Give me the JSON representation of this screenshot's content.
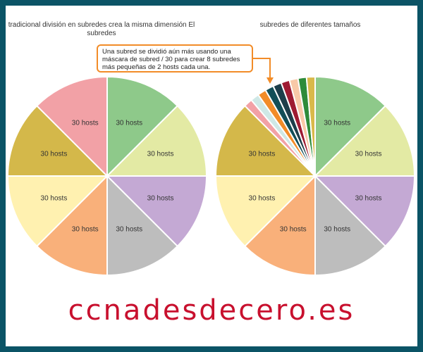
{
  "left_title": "tradicional división en subredes crea la misma dimensión El subredes",
  "right_title": "subredes de diferentes tamaños",
  "callout": "Una subred se dividió aún más usando una máscara de subred / 30 para crear 8 subredes más pequeñas de 2 hosts cada una.",
  "logo": "ccnadesdecero.es",
  "colors": {
    "background": "#0b5466",
    "callout_border": "#f28c28",
    "logo": "#c8102e"
  },
  "left_pie": {
    "slices": [
      {
        "label": "30 hosts",
        "color": "#8ec98a"
      },
      {
        "label": "30 hosts",
        "color": "#e3eaa4"
      },
      {
        "label": "30 hosts",
        "color": "#c4a9d4"
      },
      {
        "label": "30 hosts",
        "color": "#bdbdbd"
      },
      {
        "label": "30 hosts",
        "color": "#f9b07a"
      },
      {
        "label": "30 hosts",
        "color": "#fff1b0"
      },
      {
        "label": "30 hosts",
        "color": "#d4b84a"
      },
      {
        "label": "30 hosts",
        "color": "#f2a1a6"
      }
    ]
  },
  "right_pie": {
    "slices": [
      {
        "label": "30 hosts",
        "color": "#8ec98a"
      },
      {
        "label": "30 hosts",
        "color": "#e3eaa4"
      },
      {
        "label": "30 hosts",
        "color": "#c4a9d4"
      },
      {
        "label": "30 hosts",
        "color": "#bdbdbd"
      },
      {
        "label": "30 hosts",
        "color": "#f9b07a"
      },
      {
        "label": "30 hosts",
        "color": "#fff1b0"
      },
      {
        "label": "30 hosts",
        "color": "#d4b84a"
      }
    ],
    "small_slices": [
      "#f2a1a6",
      "#cfe8e6",
      "#f28c28",
      "#124e57",
      "#1d3e4a",
      "#9e1b32",
      "#f8c9a8",
      "#2e8b3a",
      "#d9b94a"
    ]
  }
}
